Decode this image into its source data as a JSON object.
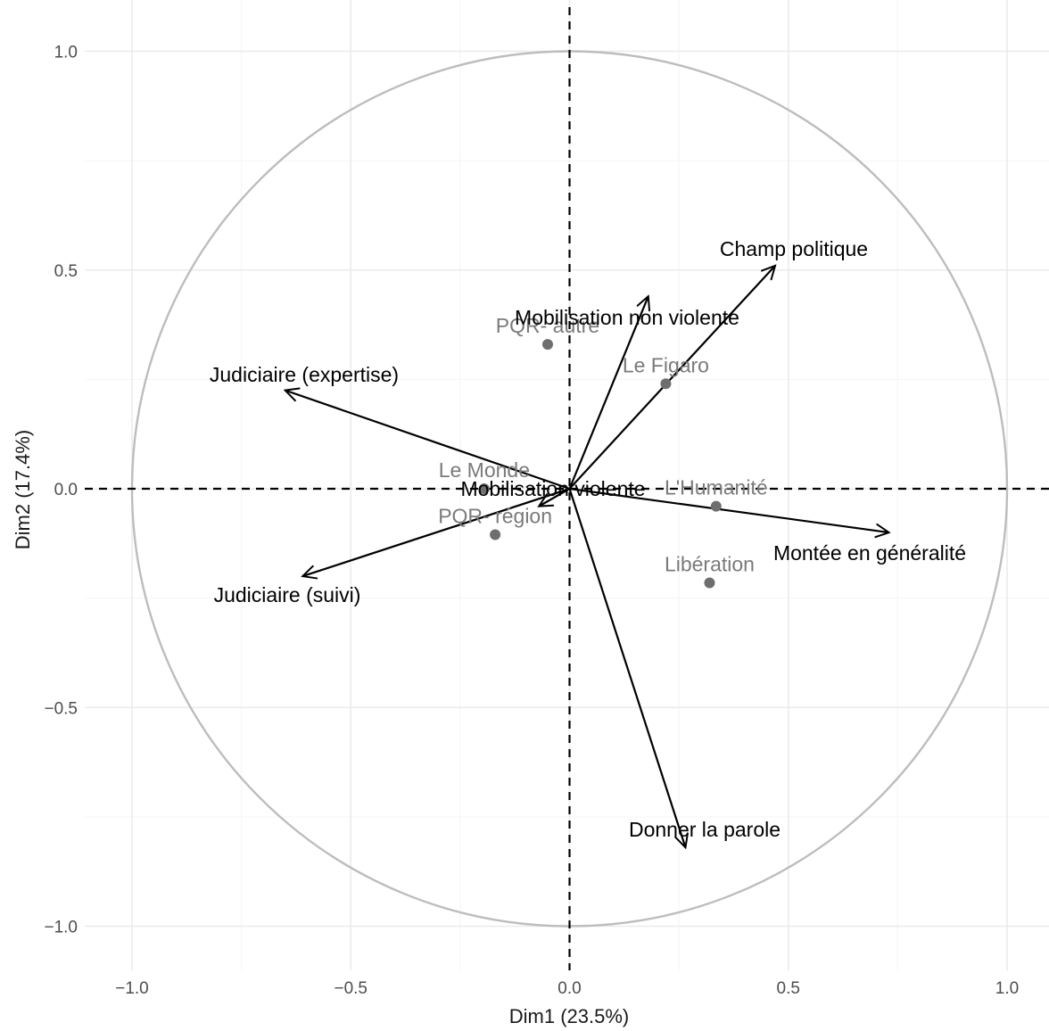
{
  "chart_data": {
    "type": "scatter",
    "subtype": "PCA biplot (correlation circle with variable arrows and individuals)",
    "title": "",
    "xlabel": "Dim1 (23.5%)",
    "ylabel": "Dim2 (17.4%)",
    "xlim": [
      -1.0,
      1.0
    ],
    "ylim": [
      -1.0,
      1.0
    ],
    "x_ticks": [
      -1.0,
      -0.5,
      0.0,
      0.5,
      1.0
    ],
    "y_ticks": [
      -1.0,
      -0.5,
      0.0,
      0.5,
      1.0
    ],
    "x_tick_labels": [
      "−1.0",
      "−0.5",
      "0.0",
      "0.5",
      "1.0"
    ],
    "y_tick_labels": [
      "−1.0",
      "−0.5",
      "0.0",
      "0.5",
      "1.0"
    ],
    "grid": true,
    "reference_lines": "dashed lines at x = 0 and y = 0",
    "circle_radius": 1.0,
    "variables": [
      {
        "label": "Champ politique",
        "x": 0.47,
        "y": 0.51
      },
      {
        "label": "Mobilisation non violente",
        "x": 0.18,
        "y": 0.44
      },
      {
        "label": "Judiciaire (expertise)",
        "x": -0.65,
        "y": 0.225
      },
      {
        "label": "Mobilisation violente",
        "x": -0.07,
        "y": -0.04
      },
      {
        "label": "Montée en généralité",
        "x": 0.73,
        "y": -0.1
      },
      {
        "label": "Judiciaire (suivi)",
        "x": -0.61,
        "y": -0.2
      },
      {
        "label": "Donner la parole",
        "x": 0.265,
        "y": -0.82
      }
    ],
    "individuals": [
      {
        "label": "PQR- autre",
        "x": -0.05,
        "y": 0.33
      },
      {
        "label": "Le Figaro",
        "x": 0.22,
        "y": 0.24
      },
      {
        "label": "Le Monde",
        "x": -0.195,
        "y": 0.0
      },
      {
        "label": "L'Humanité",
        "x": 0.335,
        "y": -0.04
      },
      {
        "label": "PQR- région",
        "x": -0.17,
        "y": -0.105
      },
      {
        "label": "Libération",
        "x": 0.32,
        "y": -0.215
      }
    ],
    "colors": {
      "arrows": "#000000",
      "variable_labels": "#000000",
      "individual_points": "#6e6e6e",
      "individual_labels": "#7a7a7a",
      "circle": "#bdbdbd",
      "grid": "#ebebeb"
    }
  }
}
